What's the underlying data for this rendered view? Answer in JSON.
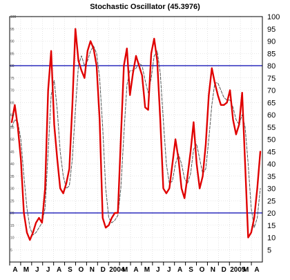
{
  "chart_data": {
    "type": "line",
    "title": "Stochastic Oscillator (45.3976)",
    "xlabel": "",
    "ylabel": "",
    "ylim": [
      0,
      100
    ],
    "yticks": [
      5,
      10,
      15,
      20,
      25,
      30,
      35,
      40,
      45,
      50,
      55,
      60,
      65,
      70,
      75,
      80,
      85,
      90,
      95,
      100
    ],
    "x_ticks": [
      "A",
      "M",
      "J",
      "J",
      "A",
      "S",
      "O",
      "N",
      "D",
      "2004",
      "M",
      "A",
      "M",
      "J",
      "J",
      "A",
      "S",
      "O",
      "N",
      "D",
      "2005",
      "M",
      "A"
    ],
    "reference_lines": [
      20,
      80
    ],
    "grid": true,
    "series": [
      {
        "role": "%K (solid red)",
        "color": "#e00000",
        "values": [
          57,
          64,
          55,
          42,
          20,
          12,
          9,
          12,
          16,
          18,
          16,
          30,
          70,
          86,
          56,
          42,
          30,
          28,
          32,
          38,
          64,
          95,
          82,
          78,
          75,
          86,
          90,
          87,
          80,
          58,
          18,
          14,
          15,
          18,
          20,
          20,
          50,
          80,
          87,
          68,
          77,
          84,
          80,
          76,
          63,
          62,
          85,
          91,
          82,
          58,
          30,
          28,
          30,
          40,
          50,
          42,
          30,
          26,
          35,
          45,
          57,
          40,
          30,
          35,
          48,
          68,
          79,
          73,
          68,
          64,
          64,
          65,
          70,
          58,
          52,
          56,
          69,
          40,
          10,
          12,
          18,
          30,
          45
        ]
      },
      {
        "role": "%D (dashed)",
        "color": "#555555",
        "values": [
          55,
          58,
          57,
          50,
          35,
          22,
          14,
          11,
          12,
          14,
          16,
          22,
          45,
          68,
          74,
          62,
          45,
          35,
          30,
          31,
          42,
          62,
          80,
          84,
          80,
          82,
          86,
          88,
          85,
          75,
          55,
          30,
          18,
          16,
          17,
          19,
          30,
          52,
          72,
          78,
          78,
          79,
          81,
          80,
          74,
          69,
          75,
          84,
          86,
          77,
          58,
          40,
          32,
          33,
          40,
          44,
          40,
          34,
          32,
          36,
          46,
          48,
          42,
          36,
          38,
          50,
          64,
          73,
          73,
          70,
          67,
          66,
          66,
          63,
          58,
          56,
          60,
          55,
          40,
          22,
          14,
          18,
          30
        ]
      }
    ]
  }
}
